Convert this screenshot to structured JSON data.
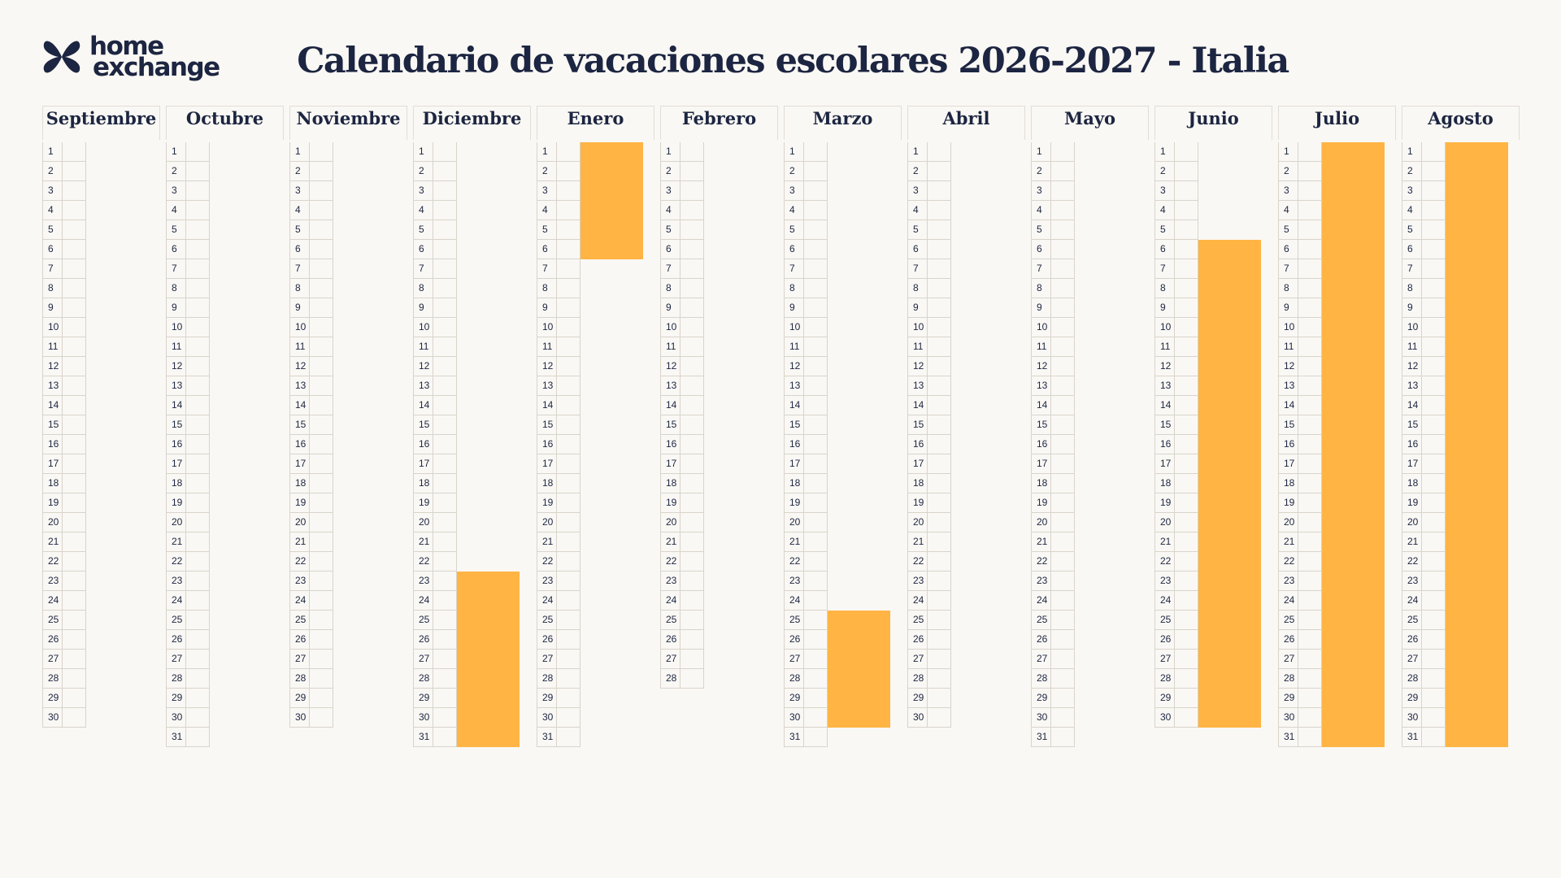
{
  "logo": {
    "line1": "home",
    "line2": "exchange"
  },
  "title": "Calendario de vacaciones escolares 2026-2027 - Italia",
  "months": [
    {
      "name": "Septiembre",
      "days": 30,
      "holidays": []
    },
    {
      "name": "Octubre",
      "days": 31,
      "holidays": []
    },
    {
      "name": "Noviembre",
      "days": 30,
      "holidays": []
    },
    {
      "name": "Diciembre",
      "days": 31,
      "holidays": [
        [
          23,
          31
        ]
      ]
    },
    {
      "name": "Enero",
      "days": 31,
      "holidays": [
        [
          1,
          6
        ]
      ]
    },
    {
      "name": "Febrero",
      "days": 28,
      "holidays": []
    },
    {
      "name": "Marzo",
      "days": 31,
      "holidays": [
        [
          25,
          30
        ]
      ]
    },
    {
      "name": "Abril",
      "days": 30,
      "holidays": []
    },
    {
      "name": "Mayo",
      "days": 31,
      "holidays": []
    },
    {
      "name": "Junio",
      "days": 30,
      "holidays": [
        [
          6,
          30
        ]
      ]
    },
    {
      "name": "Julio",
      "days": 31,
      "holidays": [
        [
          1,
          31
        ]
      ]
    },
    {
      "name": "Agosto",
      "days": 31,
      "holidays": [
        [
          1,
          31
        ]
      ]
    }
  ],
  "colors": {
    "holiday": "#ffb444",
    "text": "#1c2541",
    "grid": "#d9d4cb",
    "background": "#faf8f4"
  }
}
